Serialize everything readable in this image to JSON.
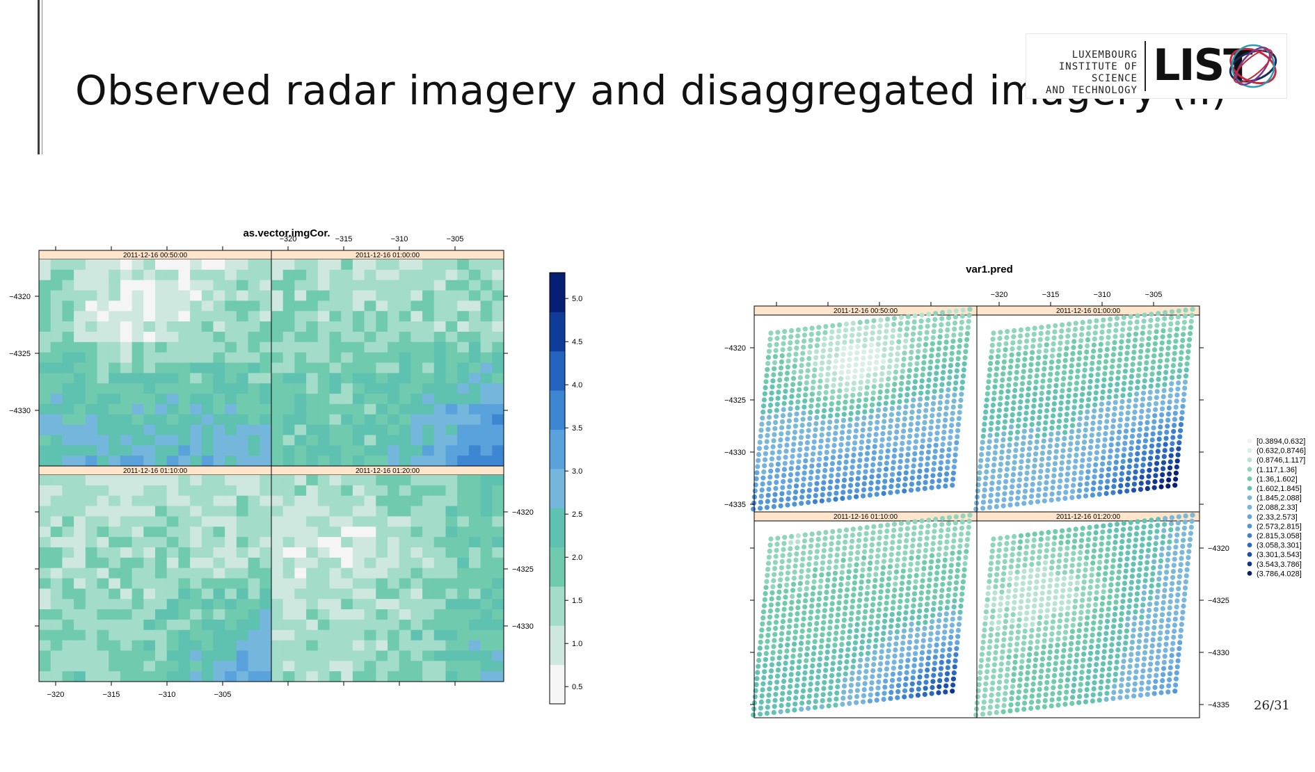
{
  "slide": {
    "title": "Observed radar imagery and disaggregated imagery (II)",
    "page_number": "26/31"
  },
  "logo": {
    "line1": "LUXEMBOURG",
    "line2": "INSTITUTE OF SCIENCE",
    "line3": "AND TECHNOLOGY",
    "wordmark": "LIST",
    "colors": [
      "#1a2b5c",
      "#c8283c",
      "#2a9ab0",
      "#7a3a8c"
    ]
  },
  "chart_data": [
    {
      "type": "heatmap",
      "title": "as.vector.imgCor.",
      "panels": [
        "2011-12-16 00:50:00",
        "2011-12-16 01:00:00",
        "2011-12-16 01:10:00",
        "2011-12-16 01:20:00"
      ],
      "x_ticks": [
        "-320",
        "-315",
        "-310",
        "-305"
      ],
      "y_ticks": [
        "-4320",
        "-4325",
        "-4330"
      ],
      "colorbar_ticks": [
        "0.5",
        "1.0",
        "1.5",
        "2.0",
        "2.5",
        "3.0",
        "3.5",
        "4.0",
        "4.5",
        "5.0"
      ],
      "value_range": [
        0.3,
        5.3
      ],
      "palette": [
        "#f5f5f5",
        "#cfe8df",
        "#a3dcc8",
        "#6fcaae",
        "#5fc2b0",
        "#74b6dc",
        "#5aa2db",
        "#3d86d2",
        "#2363bd",
        "#0f3c99",
        "#061f74"
      ],
      "grid": "20x20 cells per panel"
    },
    {
      "type": "scatter",
      "title": "var1.pred",
      "panels": [
        "2011-12-16 00:50:00",
        "2011-12-16 01:00:00",
        "2011-12-16 01:10:00",
        "2011-12-16 01:20:00"
      ],
      "x_ticks": [
        "-320",
        "-315",
        "-310",
        "-305"
      ],
      "y_ticks": [
        "-4320",
        "-4325",
        "-4330",
        "-4335"
      ],
      "legend_position": "right",
      "legend": [
        "[0.3894,0.632]",
        "(0.632,0.8746]",
        "(0.8746,1.117]",
        "(1.117,1.36]",
        "(1.36,1.602]",
        "(1.602,1.845]",
        "(1.845,2.088]",
        "(2.088,2.33]",
        "(2.33,2.573]",
        "(2.573,2.815]",
        "(2.815,3.058]",
        "(3.058,3.301]",
        "(3.301,3.543]",
        "(3.543,3.786]",
        "(3.786,4.028]"
      ],
      "legend_colors": [
        "#f2f2f2",
        "#d9eee6",
        "#b8e3d3",
        "#8fd4bd",
        "#6fcaae",
        "#63c3b2",
        "#7ab8d8",
        "#76b3e0",
        "#63a6df",
        "#4f95d9",
        "#3a80cf",
        "#2b69c0",
        "#1c4ea9",
        "#10348d",
        "#081d74"
      ],
      "value_range": [
        0.3894,
        4.028
      ],
      "grid": "30x30 points per panel"
    }
  ]
}
